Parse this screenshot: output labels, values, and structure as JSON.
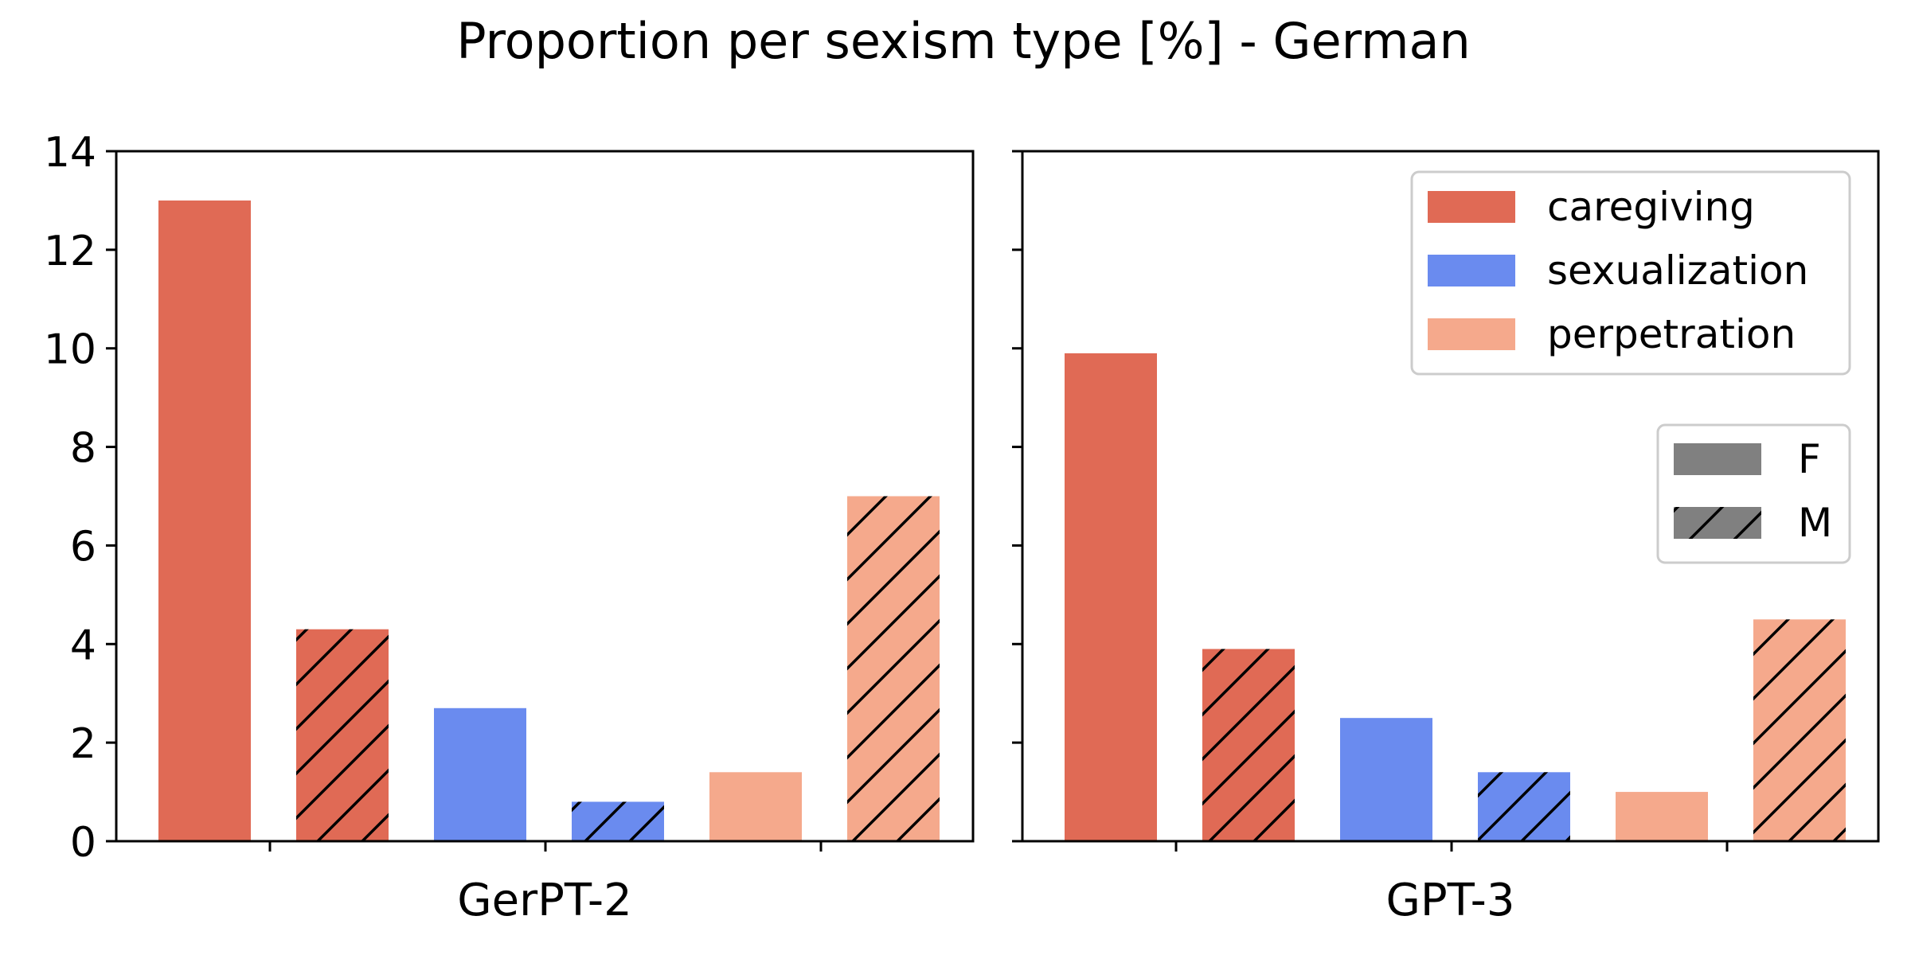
{
  "chart_data": {
    "type": "bar",
    "title": "Proportion per sexism type [%] - German",
    "ylim": [
      0,
      14
    ],
    "yticks": [
      0,
      2,
      4,
      6,
      8,
      10,
      12,
      14
    ],
    "categories": [
      "caregiving",
      "sexualization",
      "perpetration"
    ],
    "genders": [
      "F",
      "M"
    ],
    "colors": {
      "caregiving": "#e06a55",
      "sexualization": "#6a8bef",
      "perpetration": "#f5a98c",
      "gender_legend": "#808080"
    },
    "panels": [
      {
        "xlabel": "GerPT-2",
        "series": [
          {
            "name": "caregiving",
            "F": 13.0,
            "M": 4.3
          },
          {
            "name": "sexualization",
            "F": 2.7,
            "M": 0.8
          },
          {
            "name": "perpetration",
            "F": 1.4,
            "M": 7.0
          }
        ]
      },
      {
        "xlabel": "GPT-3",
        "series": [
          {
            "name": "caregiving",
            "F": 9.9,
            "M": 3.9
          },
          {
            "name": "sexualization",
            "F": 2.5,
            "M": 1.4
          },
          {
            "name": "perpetration",
            "F": 1.0,
            "M": 4.5
          }
        ]
      }
    ],
    "legend_placement": "top-right",
    "hatch": {
      "F": "none",
      "M": "diagonal"
    }
  }
}
